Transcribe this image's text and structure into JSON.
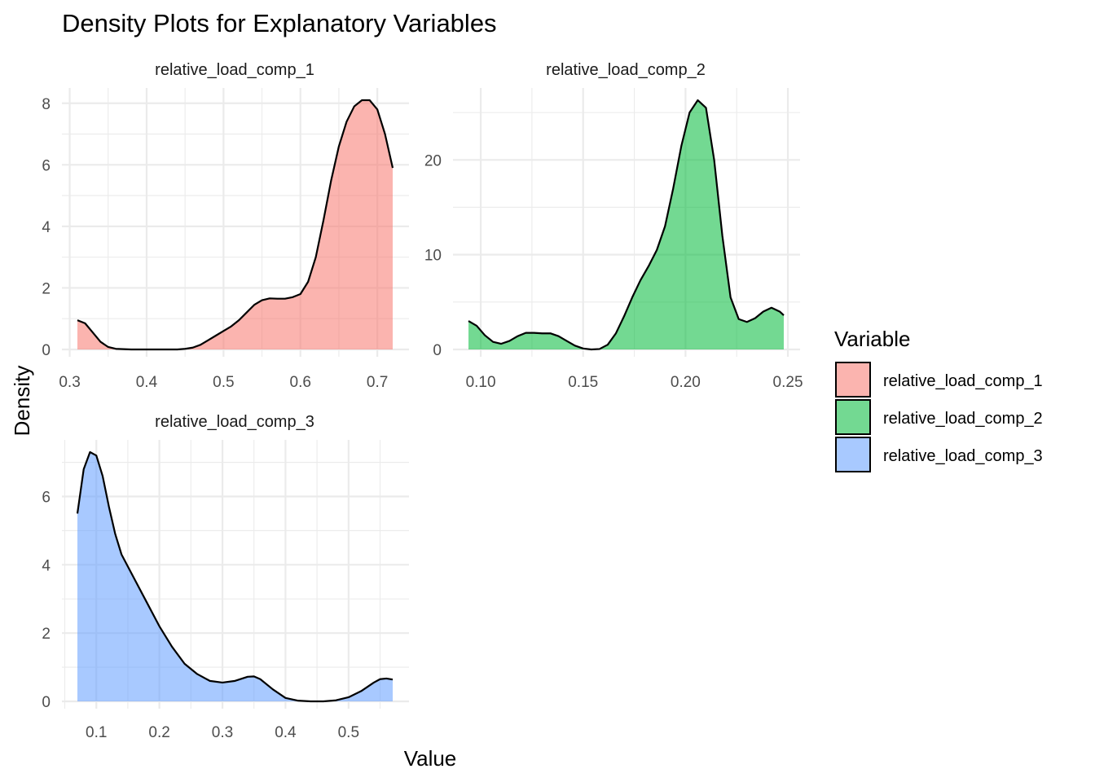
{
  "chart_data": {
    "type": "area",
    "title": "Density Plots for Explanatory Variables",
    "xlabel": "Value",
    "ylabel": "Density",
    "legend": {
      "title": "Variable",
      "placement": "right",
      "items": [
        {
          "label": "relative_load_comp_1",
          "color": "#F8766D"
        },
        {
          "label": "relative_load_comp_2",
          "color": "#00BA38"
        },
        {
          "label": "relative_load_comp_3",
          "color": "#619CFF"
        }
      ]
    },
    "fill_alpha": 0.55,
    "grid": true,
    "panels": [
      {
        "name": "relative_load_comp_1",
        "color": "#F8766D",
        "xlim": [
          0.31,
          0.72
        ],
        "ylim": [
          0,
          8.1
        ],
        "xticks": [
          0.3,
          0.4,
          0.5,
          0.6,
          0.7
        ],
        "xtick_labels": [
          "0.3",
          "0.4",
          "0.5",
          "0.6",
          "0.7"
        ],
        "yticks": [
          0,
          2,
          4,
          6,
          8
        ],
        "ytick_labels": [
          "0",
          "2",
          "4",
          "6",
          "8"
        ],
        "x": [
          0.31,
          0.32,
          0.33,
          0.34,
          0.35,
          0.36,
          0.38,
          0.4,
          0.42,
          0.44,
          0.45,
          0.46,
          0.47,
          0.48,
          0.49,
          0.5,
          0.51,
          0.52,
          0.53,
          0.54,
          0.55,
          0.56,
          0.57,
          0.58,
          0.59,
          0.6,
          0.61,
          0.62,
          0.63,
          0.64,
          0.65,
          0.66,
          0.67,
          0.68,
          0.69,
          0.7,
          0.71,
          0.72
        ],
        "y": [
          0.95,
          0.85,
          0.55,
          0.25,
          0.08,
          0.02,
          0.0,
          0.0,
          0.0,
          0.0,
          0.02,
          0.06,
          0.15,
          0.3,
          0.45,
          0.6,
          0.75,
          0.95,
          1.2,
          1.45,
          1.6,
          1.66,
          1.65,
          1.65,
          1.7,
          1.8,
          2.2,
          3.0,
          4.2,
          5.5,
          6.6,
          7.4,
          7.9,
          8.1,
          8.1,
          7.8,
          7.0,
          5.9
        ]
      },
      {
        "name": "relative_load_comp_2",
        "color": "#00BA38",
        "xlim": [
          0.094,
          0.248
        ],
        "ylim": [
          0,
          26.3
        ],
        "xticks": [
          0.1,
          0.15,
          0.2,
          0.25
        ],
        "xtick_labels": [
          "0.10",
          "0.15",
          "0.20",
          "0.25"
        ],
        "yticks": [
          0,
          10,
          20
        ],
        "ytick_labels": [
          "0",
          "10",
          "20"
        ],
        "x": [
          0.094,
          0.098,
          0.102,
          0.106,
          0.11,
          0.114,
          0.118,
          0.122,
          0.126,
          0.13,
          0.134,
          0.138,
          0.142,
          0.146,
          0.15,
          0.154,
          0.158,
          0.162,
          0.166,
          0.17,
          0.174,
          0.178,
          0.182,
          0.186,
          0.19,
          0.194,
          0.198,
          0.202,
          0.206,
          0.21,
          0.214,
          0.218,
          0.222,
          0.226,
          0.23,
          0.234,
          0.238,
          0.242,
          0.246,
          0.248
        ],
        "y": [
          3.0,
          2.5,
          1.5,
          0.8,
          0.6,
          0.9,
          1.4,
          1.75,
          1.75,
          1.7,
          1.7,
          1.4,
          0.9,
          0.4,
          0.1,
          0.0,
          0.05,
          0.5,
          1.7,
          3.5,
          5.5,
          7.3,
          8.8,
          10.5,
          13.0,
          17.0,
          21.5,
          25.0,
          26.3,
          25.5,
          20.0,
          12.0,
          5.5,
          3.2,
          2.9,
          3.3,
          4.0,
          4.4,
          4.0,
          3.6
        ]
      },
      {
        "name": "relative_load_comp_3",
        "color": "#619CFF",
        "xlim": [
          0.07,
          0.57
        ],
        "ylim": [
          0,
          7.3
        ],
        "xticks": [
          0.1,
          0.2,
          0.3,
          0.4,
          0.5
        ],
        "xtick_labels": [
          "0.1",
          "0.2",
          "0.3",
          "0.4",
          "0.5"
        ],
        "yticks": [
          0,
          2,
          4,
          6
        ],
        "ytick_labels": [
          "0",
          "2",
          "4",
          "6"
        ],
        "x": [
          0.07,
          0.08,
          0.09,
          0.1,
          0.11,
          0.12,
          0.13,
          0.14,
          0.16,
          0.18,
          0.2,
          0.22,
          0.24,
          0.26,
          0.28,
          0.3,
          0.32,
          0.34,
          0.35,
          0.36,
          0.38,
          0.4,
          0.42,
          0.44,
          0.46,
          0.48,
          0.5,
          0.52,
          0.54,
          0.55,
          0.56,
          0.57
        ],
        "y": [
          5.5,
          6.8,
          7.3,
          7.2,
          6.6,
          5.7,
          4.9,
          4.3,
          3.6,
          2.9,
          2.2,
          1.6,
          1.1,
          0.8,
          0.6,
          0.55,
          0.6,
          0.72,
          0.73,
          0.65,
          0.35,
          0.1,
          0.02,
          0.0,
          0.0,
          0.03,
          0.12,
          0.3,
          0.55,
          0.65,
          0.67,
          0.64
        ]
      }
    ]
  }
}
